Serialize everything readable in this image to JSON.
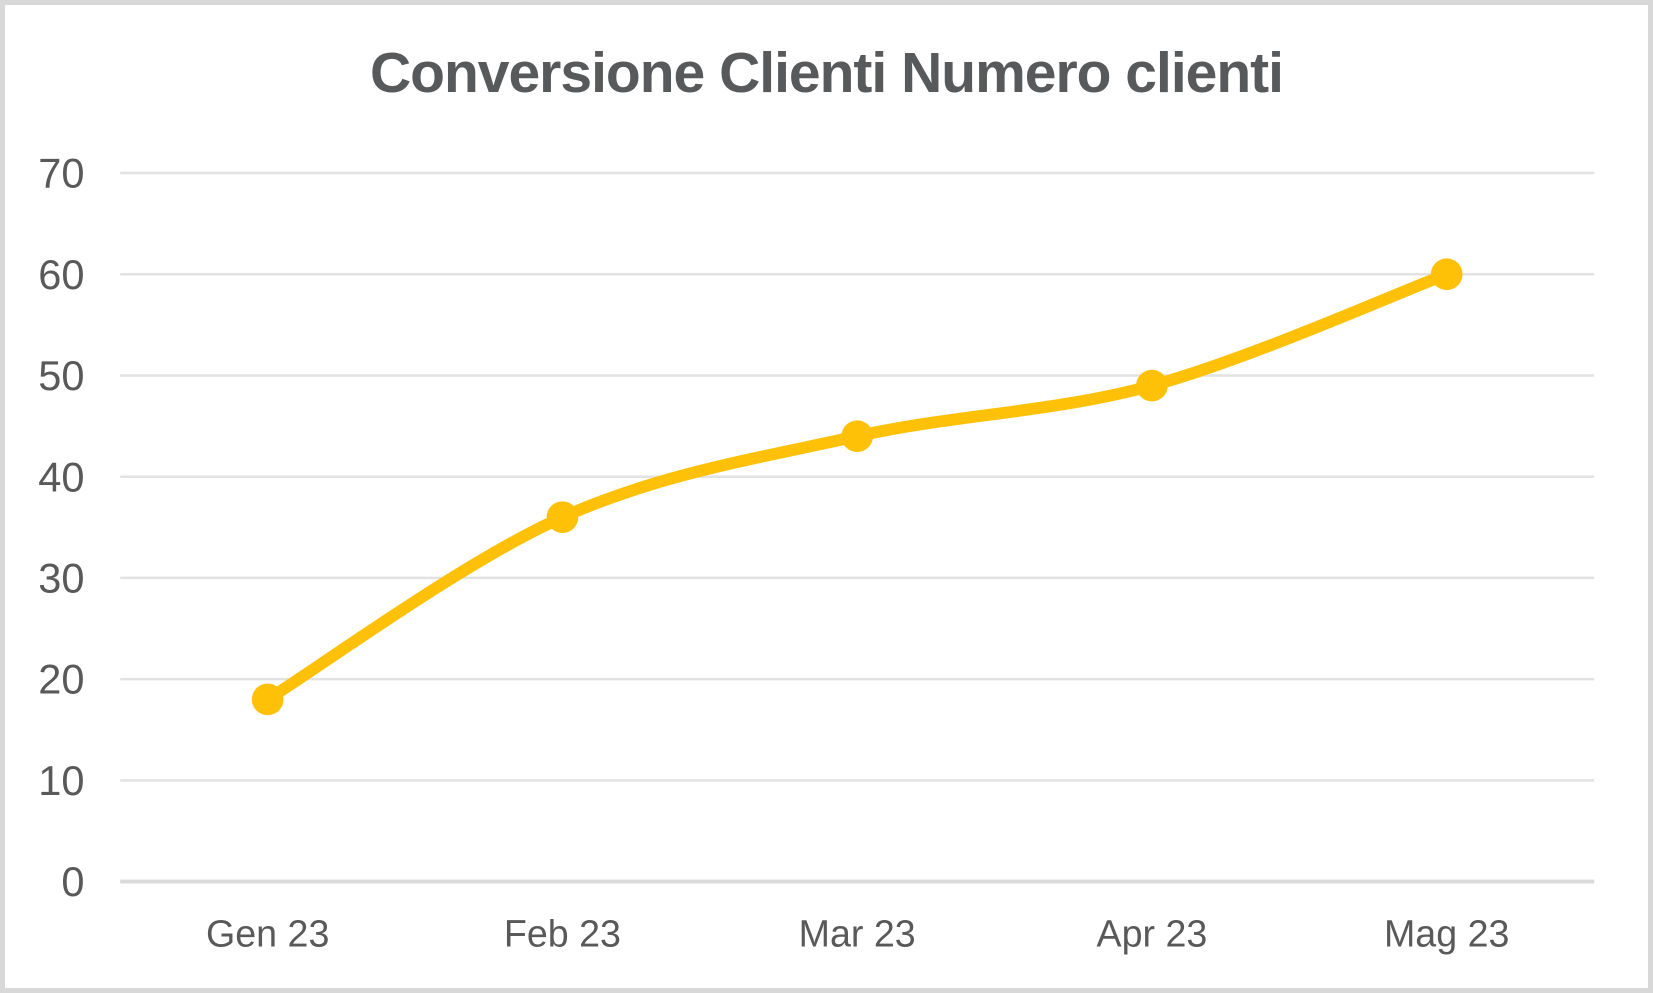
{
  "chart_data": {
    "type": "line",
    "title": "Conversione Clienti Numero clienti",
    "categories": [
      "Gen 23",
      "Feb 23",
      "Mar 23",
      "Apr 23",
      "Mag 23"
    ],
    "values": [
      18,
      36,
      44,
      49,
      60
    ],
    "ylim": [
      0,
      70
    ],
    "yticks": [
      0,
      10,
      20,
      30,
      40,
      50,
      60,
      70
    ],
    "grid": "horizontal",
    "legend_position": "none",
    "smooth_line": true,
    "line_color": "#FFC107",
    "marker_color": "#FFC107",
    "gridline_color": "#E2E2E2",
    "baseline_color": "#DBDBDB",
    "title_color": "#58595B",
    "tick_label_color": "#595959",
    "background_color": "#FFFFFF",
    "frame_border_color": "#D8D8D8"
  }
}
